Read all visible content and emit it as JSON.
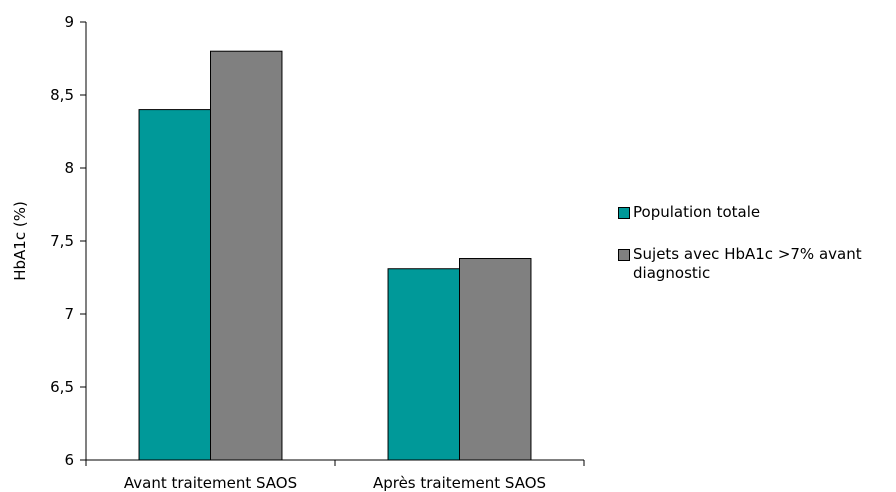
{
  "chart_data": {
    "type": "bar",
    "categories": [
      "Avant traitement SAOS",
      "Après traitement SAOS"
    ],
    "series": [
      {
        "name": "Population totale",
        "values": [
          8.4,
          7.31
        ],
        "color": "#009999"
      },
      {
        "name": "Sujets avec HbA1c >7% avant diagnostic",
        "values": [
          8.8,
          7.38
        ],
        "color": "#808080"
      }
    ],
    "ylabel": "HbA1c (%)",
    "ylim": [
      6,
      9
    ],
    "yticks": [
      6,
      6.5,
      7,
      7.5,
      8,
      8.5,
      9
    ],
    "ytick_labels": [
      "6",
      "6,5",
      "7",
      "7,5",
      "8",
      "8,5",
      "9"
    ],
    "grid": false,
    "legend_position": "right"
  }
}
